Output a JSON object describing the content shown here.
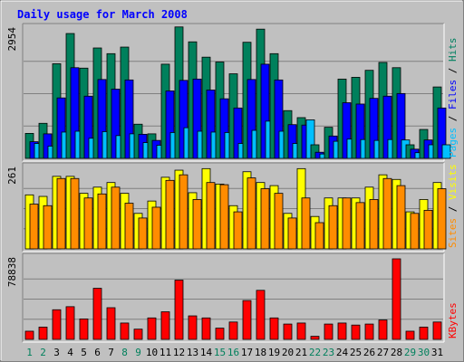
{
  "chart_data": {
    "type": "bar",
    "title": "Daily usage for March 2008",
    "days": [
      "1",
      "2",
      "3",
      "4",
      "5",
      "6",
      "7",
      "8",
      "9",
      "10",
      "11",
      "12",
      "13",
      "14",
      "15",
      "16",
      "17",
      "18",
      "19",
      "20",
      "21",
      "22",
      "23",
      "24",
      "25",
      "26",
      "27",
      "28",
      "29",
      "30",
      "31"
    ],
    "weekend_days": [
      "1",
      "2",
      "8",
      "9",
      "15",
      "16",
      "22",
      "23",
      "29",
      "30"
    ],
    "panels": [
      {
        "max_label": "2954",
        "max": 2954,
        "series": [
          {
            "name": "Hits",
            "color": "#00805c",
            "values": [
              570,
              800,
              2160,
              2850,
              2060,
              2520,
              2390,
              2540,
              780,
              560,
              2150,
              3000,
              2660,
              2310,
              2200,
              1930,
              2650,
              2950,
              2390,
              1090,
              930,
              310,
              710,
              1810,
              1850,
              2010,
              2190,
              2070,
              310,
              660,
              1630
            ]
          },
          {
            "name": "Files",
            "color": "#0000ff",
            "values": [
              380,
              560,
              1380,
              2070,
              1420,
              1800,
              1580,
              1790,
              550,
              410,
              1540,
              1780,
              1810,
              1560,
              1360,
              1150,
              1800,
              2150,
              1790,
              770,
              760,
              140,
              510,
              1270,
              1240,
              1370,
              1420,
              1480,
              210,
              420,
              1150
            ]
          },
          {
            "name": "Pages",
            "color": "#00bfff",
            "values": [
              340,
              280,
              600,
              620,
              460,
              610,
              520,
              560,
              360,
              300,
              590,
              700,
              620,
              600,
              590,
              340,
              640,
              850,
              620,
              340,
              880,
              100,
              390,
              440,
              430,
              410,
              430,
              420,
              130,
              310,
              310
            ]
          }
        ],
        "label_order": [
          "Pages",
          "Files",
          "Hits"
        ]
      },
      {
        "max_label": "261",
        "max": 261,
        "series": [
          {
            "name": "Visits",
            "color": "#ffff00",
            "values": [
              175,
              170,
              235,
              235,
              180,
              200,
              215,
              180,
              115,
              155,
              232,
              255,
              182,
              260,
              210,
              140,
              250,
              215,
              205,
              115,
              260,
              105,
              165,
              165,
              165,
              200,
              240,
              225,
              120,
              160,
              215
            ]
          },
          {
            "name": "Sites",
            "color": "#ff8c00",
            "values": [
              145,
              140,
              228,
              228,
              165,
              178,
              200,
              148,
              100,
              135,
              222,
              240,
              160,
              215,
              208,
              120,
              230,
              195,
              180,
              100,
              165,
              85,
              140,
              165,
              150,
              160,
              228,
              205,
              115,
              125,
              195
            ]
          }
        ],
        "label_order": [
          "Sites",
          "Visits"
        ]
      },
      {
        "max_label": "78838",
        "max": 78838,
        "series": [
          {
            "name": "KBytes",
            "color": "#ff0000",
            "values": [
              8000,
              12000,
              29000,
              32000,
              20000,
              50000,
              31000,
              16000,
              10000,
              21000,
              27000,
              58000,
              23000,
              21000,
              11000,
              17000,
              38000,
              48000,
              21000,
              15000,
              16000,
              3000,
              15000,
              16000,
              14000,
              15000,
              19000,
              78838,
              8000,
              12000,
              17000
            ]
          }
        ],
        "label_order": [
          "KBytes"
        ]
      }
    ]
  }
}
